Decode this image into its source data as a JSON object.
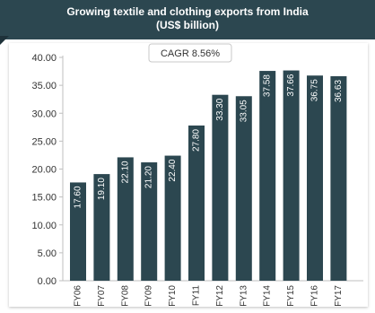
{
  "chart_data": {
    "type": "bar",
    "title": "Growing textile and clothing exports from India",
    "subtitle": "(US$ billion)",
    "annotation": "CAGR 8.56%",
    "categories": [
      "FY06",
      "FY07",
      "FY08",
      "FY09",
      "FY10",
      "FY11",
      "FY12",
      "FY13",
      "FY14",
      "FY15",
      "FY16",
      "FY17"
    ],
    "values": [
      17.6,
      19.1,
      22.1,
      21.2,
      22.4,
      27.8,
      33.3,
      33.05,
      37.58,
      37.66,
      36.75,
      36.63
    ],
    "value_labels": [
      "17.60",
      "19.10",
      "22.10",
      "21.20",
      "22.40",
      "27.80",
      "33.30",
      "33.05",
      "37.58",
      "37.66",
      "36.75",
      "36.63"
    ],
    "y_ticks": [
      "0.00",
      "5.00",
      "10.00",
      "15.00",
      "20.00",
      "25.00",
      "30.00",
      "35.00",
      "40.00"
    ],
    "ylim": [
      0,
      40
    ],
    "grid": false,
    "bar_color": "#2c4750",
    "header_color": "#2c4750"
  }
}
